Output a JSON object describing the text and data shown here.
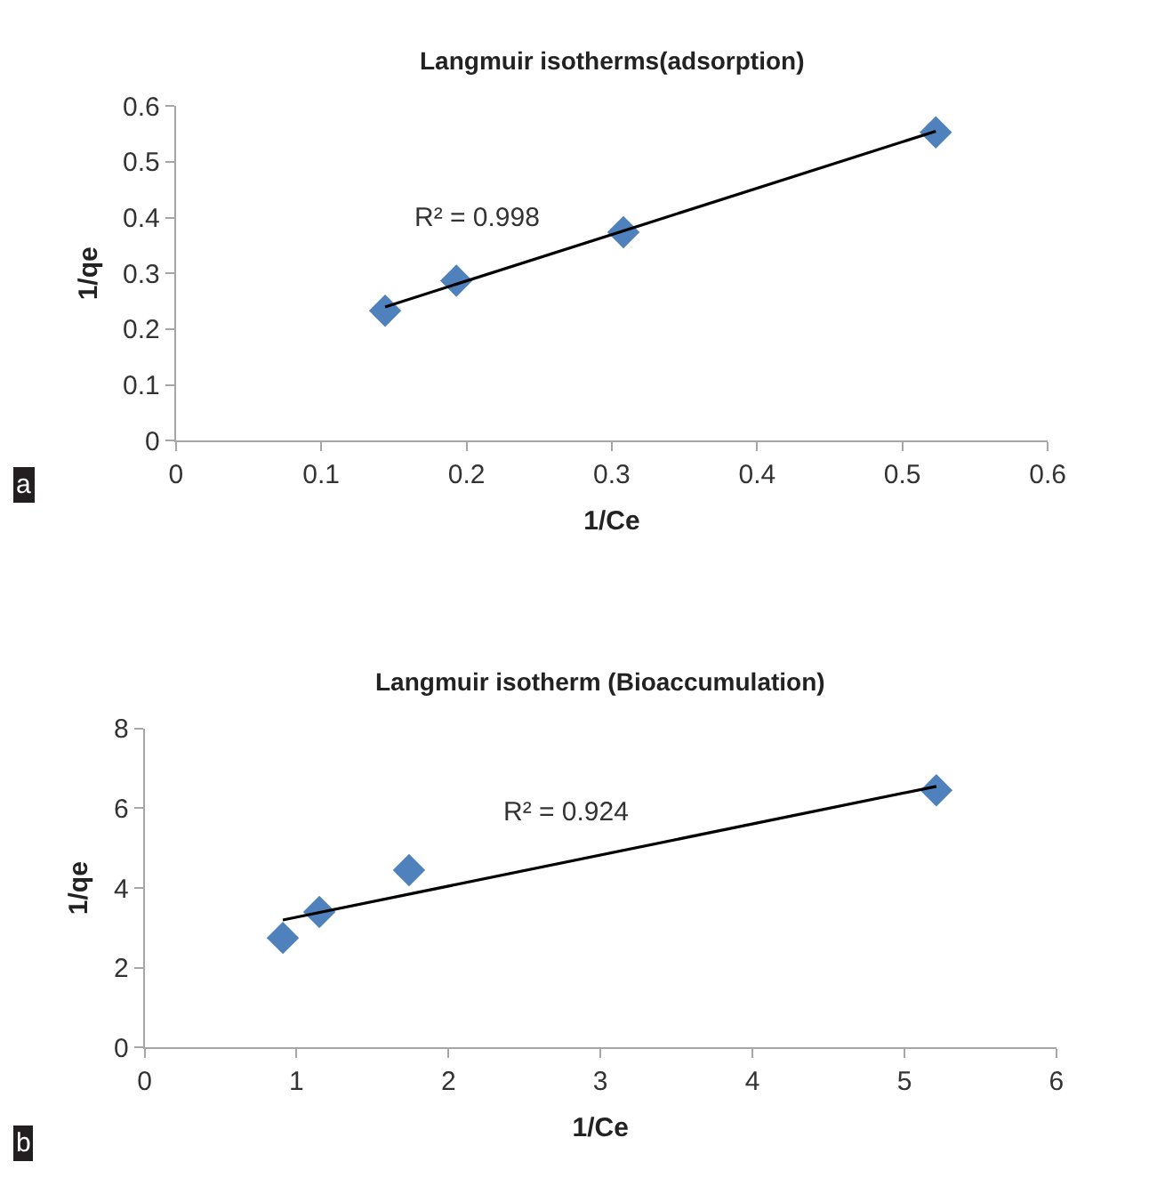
{
  "chart_data": [
    {
      "type": "scatter",
      "title": "Langmuir isotherms(adsorption)",
      "xlabel": "1/Ce",
      "ylabel": "1/qe",
      "marker": "diamond",
      "series": [
        {
          "color": "#4f81bd",
          "x": [
            0.144,
            0.193,
            0.308,
            0.523
          ],
          "values": [
            0.233,
            0.287,
            0.374,
            0.553
          ]
        },
        {
          "type": "line",
          "color": "#000000",
          "marker": "none",
          "line_style": "solid",
          "x": [
            0.144,
            0.523
          ],
          "values": [
            0.24,
            0.555
          ]
        }
      ],
      "xlim": [
        0,
        0.6
      ],
      "ylim": [
        0,
        0.6
      ],
      "xticks": [
        0,
        0.1,
        0.2,
        0.3,
        0.4,
        0.5,
        0.6
      ],
      "yticks": [
        0,
        0.1,
        0.2,
        0.3,
        0.4,
        0.5,
        0.6
      ],
      "annotations": [
        "R² = 0.998",
        "a"
      ]
    },
    {
      "type": "scatter",
      "title": "Langmuir isotherm (Bioaccumulation)",
      "xlabel": "1/Ce",
      "ylabel": "1/qe",
      "marker": "diamond",
      "series": [
        {
          "color": "#4f81bd",
          "x": [
            0.91,
            1.15,
            1.74,
            5.21
          ],
          "values": [
            2.75,
            3.4,
            4.45,
            6.45
          ]
        },
        {
          "type": "line",
          "color": "#000000",
          "marker": "none",
          "line_style": "solid",
          "x": [
            0.91,
            5.21
          ],
          "values": [
            3.2,
            6.55
          ]
        }
      ],
      "xlim": [
        0,
        6
      ],
      "ylim": [
        0,
        8
      ],
      "xticks": [
        0,
        1,
        2,
        3,
        4,
        5,
        6
      ],
      "yticks": [
        0,
        2,
        4,
        6,
        8
      ],
      "annotations": [
        "R² = 0.924",
        "b"
      ]
    }
  ]
}
